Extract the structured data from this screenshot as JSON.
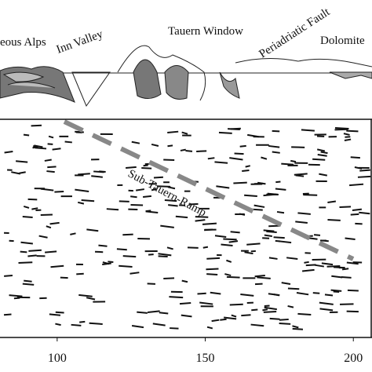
{
  "section_labels": [
    "eous Alps",
    "Inn Valley",
    "Tauern Window",
    "Periadriatic Fault",
    "Dolomite"
  ],
  "ramp_label": "Sub-Tauern-Ramp",
  "axis": {
    "xlim": [
      80.7,
      206.3
    ],
    "xticks": [
      100,
      150,
      200
    ]
  }
}
